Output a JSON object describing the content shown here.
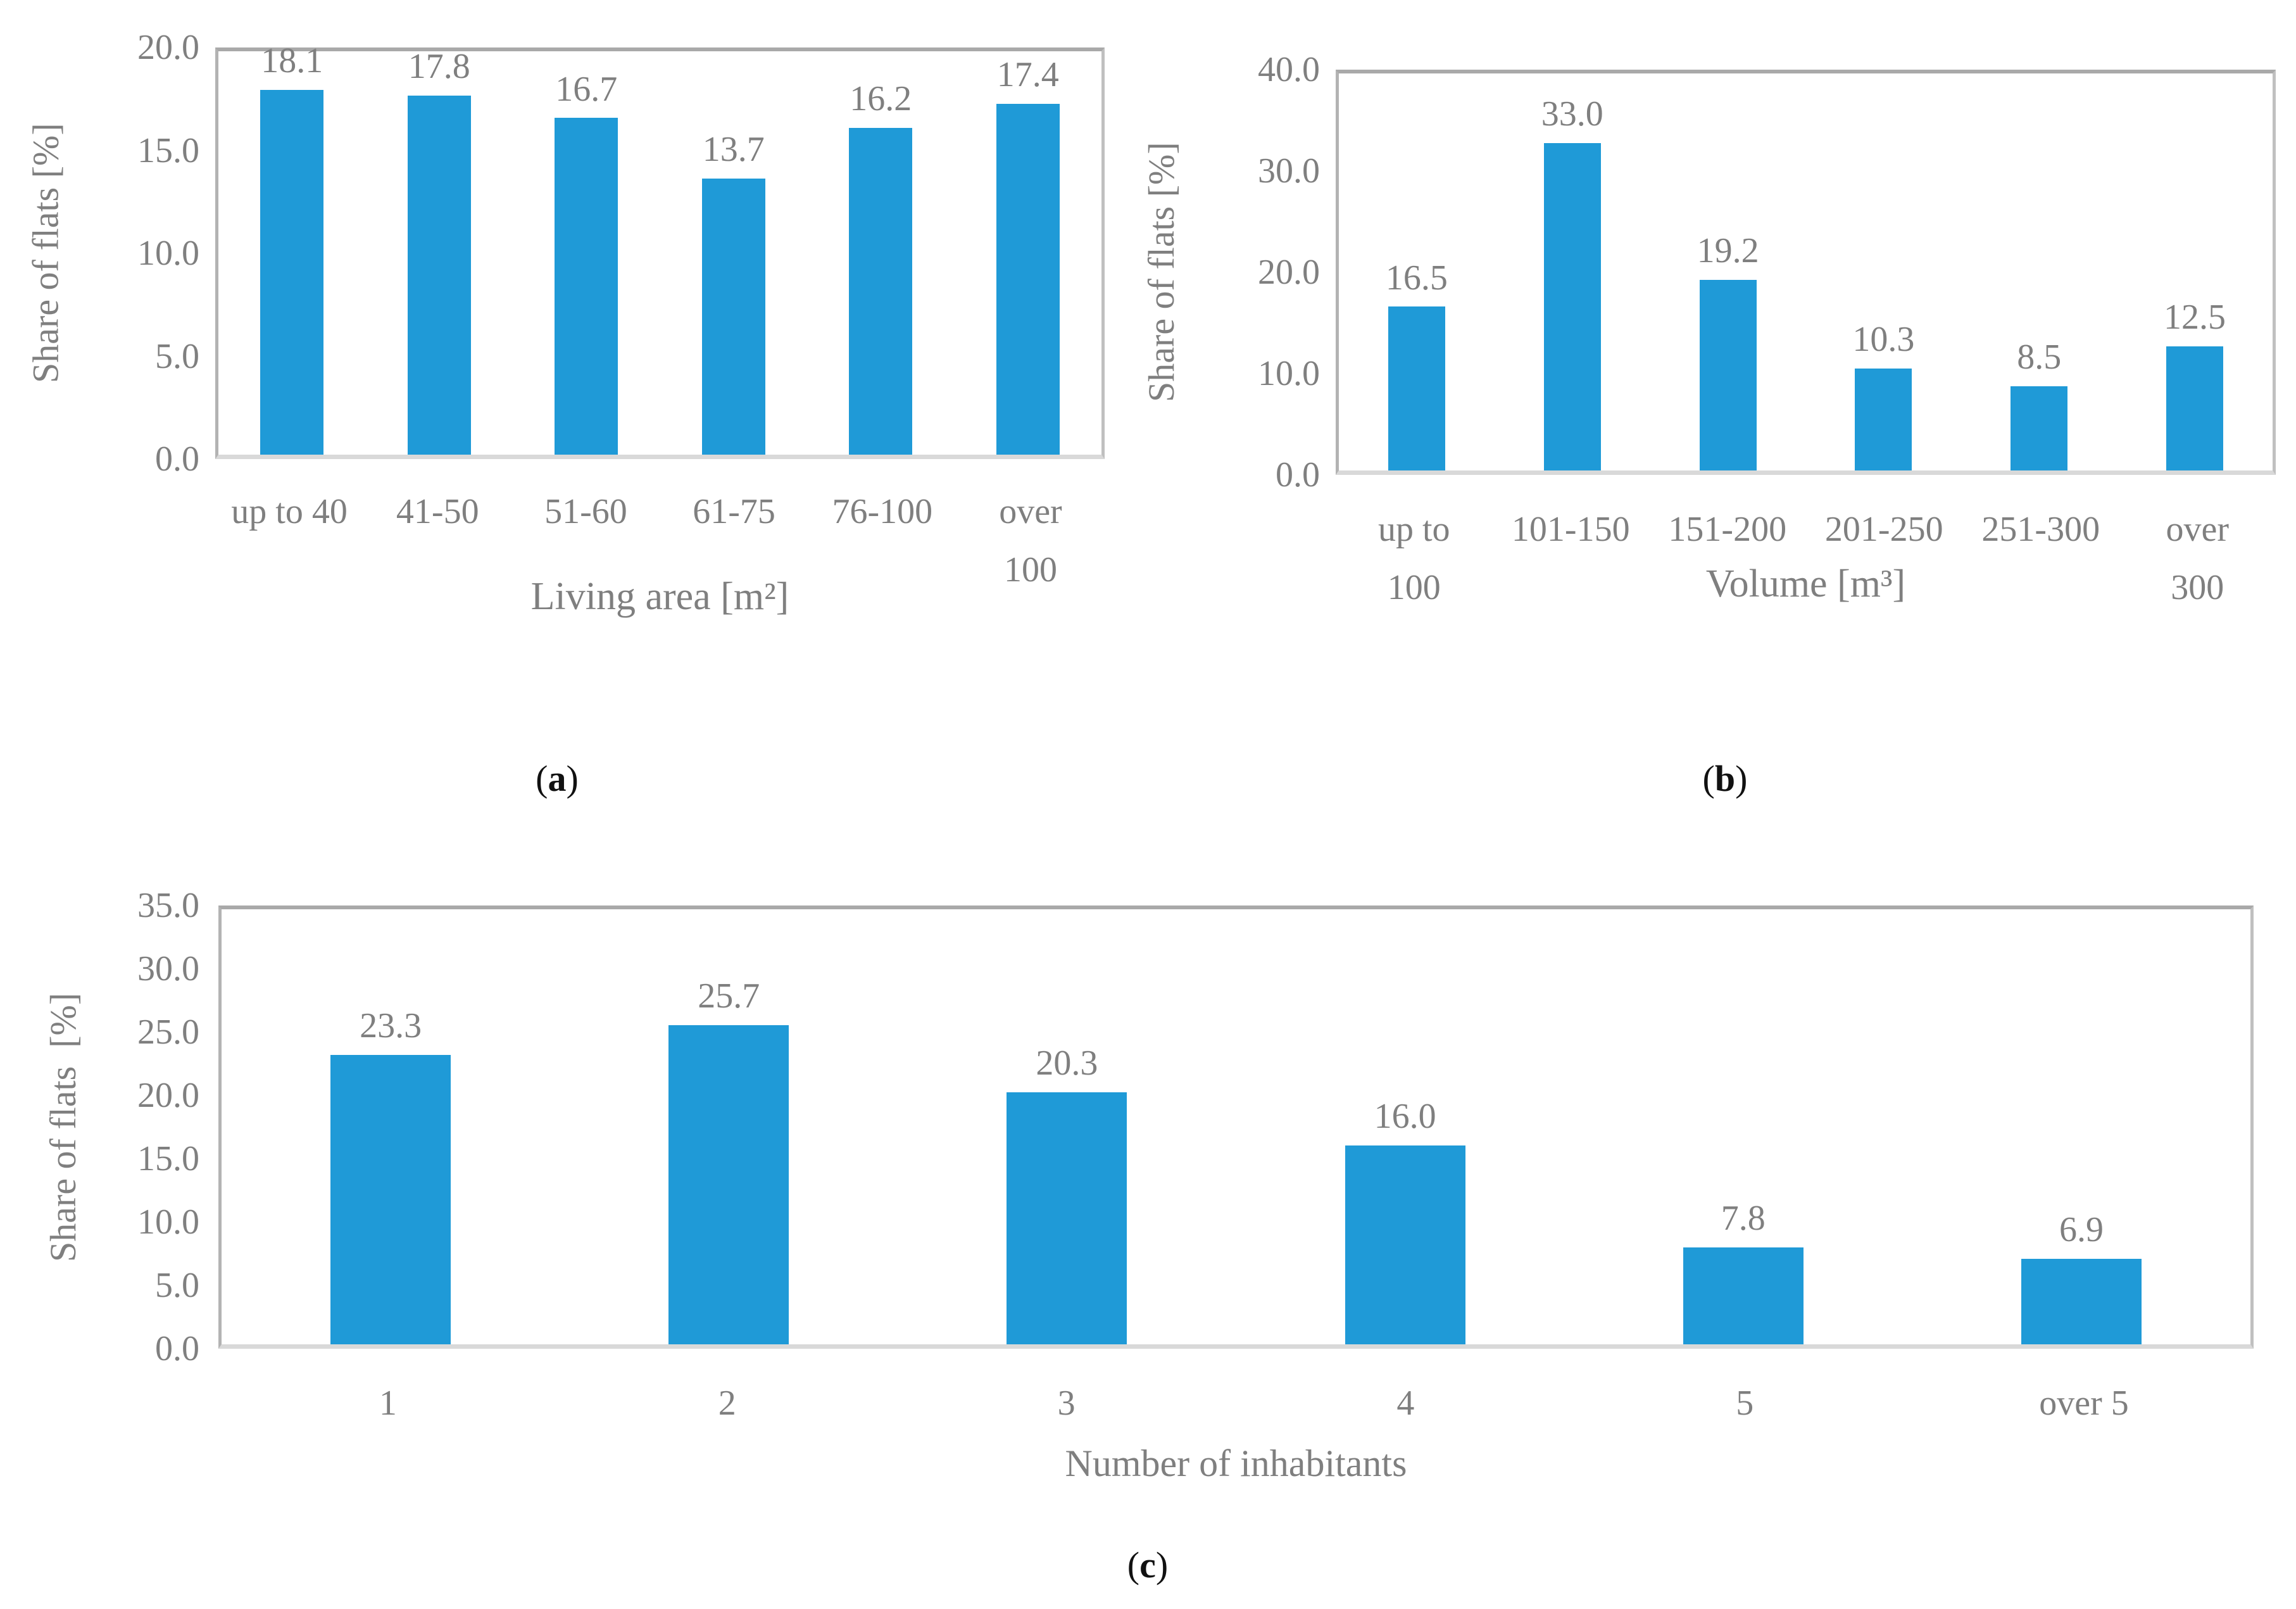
{
  "figure": {
    "background": "#ffffff",
    "bar_color": "#1f9ad7",
    "text_color": "#7f7f7f",
    "plot_border_color": "#a9a9a9",
    "baseline_color": "#d9d9d9",
    "caption_color": "#111111"
  },
  "chart_data": [
    {
      "type": "bar",
      "panel": "a",
      "title": "",
      "ylabel": "Share of flats [%]",
      "xlabel": "Living area [m²]",
      "categories": [
        "up to 40",
        "41-50",
        "51-60",
        "61-75",
        "76-100",
        "over\n100"
      ],
      "values": [
        18.1,
        17.8,
        16.7,
        13.7,
        16.2,
        17.4
      ],
      "value_labels": [
        "18.1",
        "17.8",
        "16.7",
        "13.7",
        "16.2",
        "17.4"
      ],
      "ylim": [
        0,
        20
      ],
      "yticks": [
        "20.0",
        "15.0",
        "10.0",
        "5.0",
        "0.0"
      ],
      "grid": false,
      "legend": "none",
      "caption": {
        "open": "(",
        "letter": "a",
        "close": ")"
      }
    },
    {
      "type": "bar",
      "panel": "b",
      "title": "",
      "ylabel": "Share of flats [%]",
      "xlabel": "Volume [m³]",
      "categories": [
        "up to\n100",
        "101-150",
        "151-200",
        "201-250",
        "251-300",
        "over\n300"
      ],
      "values": [
        16.5,
        33.0,
        19.2,
        10.3,
        8.5,
        12.5
      ],
      "value_labels": [
        "16.5",
        "33.0",
        "19.2",
        "10.3",
        "8.5",
        "12.5"
      ],
      "ylim": [
        0,
        40
      ],
      "yticks": [
        "40.0",
        "30.0",
        "20.0",
        "10.0",
        "0.0"
      ],
      "grid": false,
      "legend": "none",
      "caption": {
        "open": "(",
        "letter": "b",
        "close": ")"
      }
    },
    {
      "type": "bar",
      "panel": "c",
      "title": "",
      "ylabel": "Share of flats  [%]",
      "xlabel": "Number of inhabitants",
      "categories": [
        "1",
        "2",
        "3",
        "4",
        "5",
        "over 5"
      ],
      "values": [
        23.3,
        25.7,
        20.3,
        16.0,
        7.8,
        6.9
      ],
      "value_labels": [
        "23.3",
        "25.7",
        "20.3",
        "16.0",
        "7.8",
        "6.9"
      ],
      "ylim": [
        0,
        35
      ],
      "yticks": [
        "35.0",
        "30.0",
        "25.0",
        "20.0",
        "15.0",
        "10.0",
        "5.0",
        "0.0"
      ],
      "grid": false,
      "legend": "none",
      "caption": {
        "open": "(",
        "letter": "c",
        "close": ")"
      }
    }
  ]
}
